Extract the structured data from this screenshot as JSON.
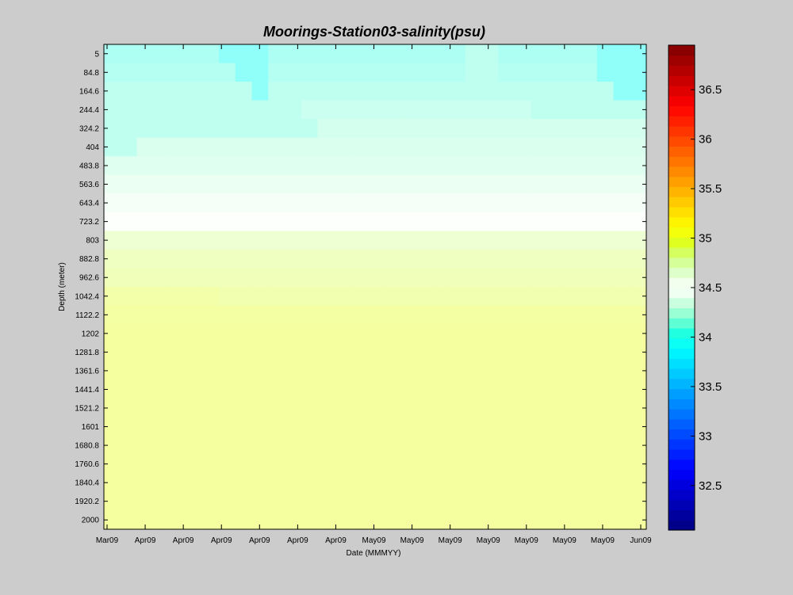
{
  "chart_data": {
    "type": "heatmap",
    "title": "Moorings-Station03-salinity(psu)",
    "xlabel": "Date (MMMYY)",
    "ylabel": "Depth (meter)",
    "x_tick_labels": [
      "Mar09",
      "Apr09",
      "Apr09",
      "Apr09",
      "Apr09",
      "Apr09",
      "Apr09",
      "May09",
      "May09",
      "May09",
      "May09",
      "May09",
      "May09",
      "May09",
      "Jun09"
    ],
    "depths": [
      5,
      84.8,
      164.6,
      244.4,
      324.2,
      404,
      483.8,
      563.6,
      643.4,
      723.2,
      803,
      882.8,
      962.6,
      1042.4,
      1122.2,
      1202,
      1281.8,
      1361.6,
      1441.4,
      1521.2,
      1601,
      1680.8,
      1760.6,
      1840.4,
      1920.2,
      2000
    ],
    "colorbar": {
      "min": 32.05,
      "max": 36.95,
      "ticks": [
        32.5,
        33,
        33.5,
        34,
        34.5,
        35,
        35.5,
        36,
        36.5
      ],
      "tick_labels": [
        "32.5",
        "33",
        "33.5",
        "34",
        "34.5",
        "35",
        "35.5",
        "36",
        "36.5"
      ]
    },
    "time_columns": 33,
    "salinity_profile": [
      34.05,
      34.08,
      34.12,
      34.18,
      34.22,
      34.25,
      34.28,
      34.35,
      34.42,
      34.52,
      34.78,
      34.86,
      34.9,
      34.93,
      34.98,
      35.0,
      35.0,
      35.0,
      35.0,
      35.0,
      35.0,
      35.0,
      35.0,
      35.0,
      35.0,
      35.0
    ],
    "anomalies": [
      {
        "col_start": 7,
        "col_end": 9,
        "depth_start": 5,
        "depth_end": 5,
        "value": 33.95
      },
      {
        "col_start": 8,
        "col_end": 9,
        "depth_start": 84.8,
        "depth_end": 84.8,
        "value": 33.95
      },
      {
        "col_start": 9,
        "col_end": 9,
        "depth_start": 164.6,
        "depth_end": 164.6,
        "value": 33.95
      },
      {
        "col_start": 30,
        "col_end": 32,
        "depth_start": 5,
        "depth_end": 84.8,
        "value": 33.95
      },
      {
        "col_start": 31,
        "col_end": 32,
        "depth_start": 164.6,
        "depth_end": 164.6,
        "value": 33.95
      },
      {
        "col_start": 22,
        "col_end": 23,
        "depth_start": 5,
        "depth_end": 84.8,
        "value": 34.12
      },
      {
        "col_start": 21,
        "col_end": 23,
        "depth_start": 164.6,
        "depth_end": 164.6,
        "value": 34.12
      },
      {
        "col_start": 0,
        "col_end": 11,
        "depth_start": 244.4,
        "depth_end": 244.4,
        "value": 34.12
      },
      {
        "col_start": 26,
        "col_end": 32,
        "depth_start": 244.4,
        "depth_end": 244.4,
        "value": 34.12
      },
      {
        "col_start": 0,
        "col_end": 12,
        "depth_start": 324.2,
        "depth_end": 324.2,
        "value": 34.12
      },
      {
        "col_start": 0,
        "col_end": 1,
        "depth_start": 404,
        "depth_end": 404,
        "value": 34.12
      },
      {
        "col_start": 0,
        "col_end": 6,
        "depth_start": 1042.4,
        "depth_end": 1042.4,
        "value": 34.96
      },
      {
        "col_start": 0,
        "col_end": 5,
        "depth_start": 1122.2,
        "depth_end": 1122.2,
        "value": 34.98
      }
    ]
  }
}
